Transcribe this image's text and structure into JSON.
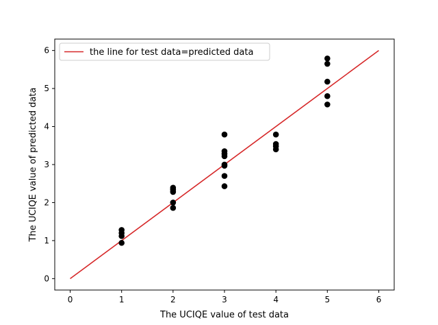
{
  "chart_data": {
    "type": "scatter",
    "title": "",
    "xlabel": "The UCIQE value of test data",
    "ylabel": "The UCIQE value of predicted data",
    "xlim": [
      -0.3,
      6.3
    ],
    "ylim": [
      -0.3,
      6.3
    ],
    "xticks": [
      "0",
      "1",
      "2",
      "3",
      "4",
      "5",
      "6"
    ],
    "yticks": [
      "0",
      "1",
      "2",
      "3",
      "4",
      "5",
      "6"
    ],
    "grid": false,
    "legend_position": "top-left",
    "reference_line": {
      "name": "the line for test data=predicted data",
      "x": [
        0,
        6
      ],
      "y": [
        0,
        6
      ],
      "color": "#d62728"
    },
    "series": [
      {
        "marker_color": "#000000",
        "points": [
          [
            1,
            0.94
          ],
          [
            1,
            1.12
          ],
          [
            1,
            1.2
          ],
          [
            1,
            1.28
          ],
          [
            2,
            1.86
          ],
          [
            2,
            2.0
          ],
          [
            2,
            2.28
          ],
          [
            2,
            2.34
          ],
          [
            2,
            2.39
          ],
          [
            3,
            2.43
          ],
          [
            3,
            2.7
          ],
          [
            3,
            2.97
          ],
          [
            3,
            3.0
          ],
          [
            3,
            3.22
          ],
          [
            3,
            3.28
          ],
          [
            3,
            3.35
          ],
          [
            3,
            3.79
          ],
          [
            4,
            3.4
          ],
          [
            4,
            3.48
          ],
          [
            4,
            3.54
          ],
          [
            4,
            3.79
          ],
          [
            5,
            4.58
          ],
          [
            5,
            4.8
          ],
          [
            5,
            5.18
          ],
          [
            5,
            5.65
          ],
          [
            5,
            5.79
          ]
        ]
      }
    ]
  }
}
